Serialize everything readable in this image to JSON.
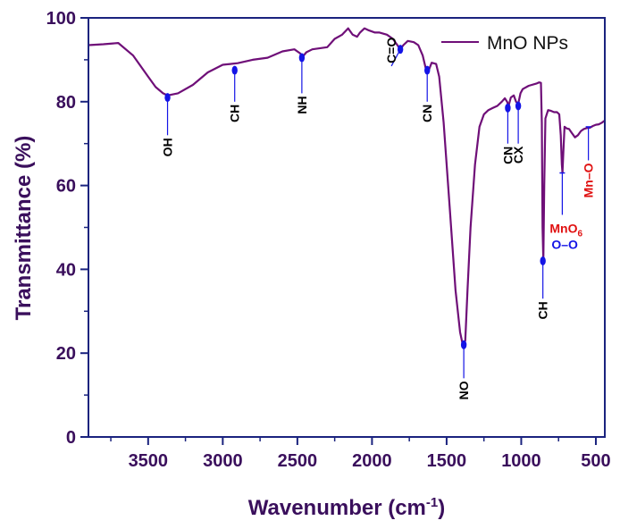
{
  "chart_data": {
    "type": "line",
    "title": "",
    "xlabel": "Wavenumber (cm",
    "xlabel_sup": "-1",
    "xlabel_end": ")",
    "ylabel": "Transmittance (%)",
    "xlim": [
      3900,
      440
    ],
    "ylim": [
      0,
      100
    ],
    "xticks": [
      3500,
      3000,
      2500,
      2000,
      1500,
      1000,
      500
    ],
    "yticks": [
      0,
      20,
      40,
      60,
      80,
      100
    ],
    "legend": {
      "position": "top-right",
      "label": "MnO NPs"
    },
    "colors": {
      "line": "#6f0f78",
      "axis": "#1a237e",
      "text": "#3a0f5c",
      "marker": "#1414e6",
      "red": "#e01010",
      "blue": "#1414e6"
    },
    "series": [
      {
        "name": "MnO NPs",
        "x": [
          3900,
          3800,
          3700,
          3600,
          3500,
          3450,
          3400,
          3370,
          3300,
          3200,
          3100,
          3000,
          2950,
          2900,
          2800,
          2700,
          2600,
          2520,
          2480,
          2470,
          2440,
          2400,
          2300,
          2250,
          2200,
          2160,
          2130,
          2100,
          2080,
          2050,
          2020,
          1980,
          1950,
          1900,
          1860,
          1830,
          1810,
          1790,
          1760,
          1720,
          1690,
          1660,
          1640,
          1620,
          1600,
          1570,
          1550,
          1520,
          1480,
          1440,
          1410,
          1395,
          1385,
          1375,
          1360,
          1340,
          1310,
          1280,
          1250,
          1220,
          1190,
          1160,
          1130,
          1110,
          1095,
          1085,
          1070,
          1050,
          1035,
          1020,
          1005,
          990,
          950,
          900,
          880,
          868,
          862,
          857,
          852,
          846,
          838,
          820,
          800,
          780,
          760,
          745,
          735,
          728,
          724,
          718,
          710,
          695,
          680,
          660,
          640,
          620,
          600,
          580,
          560,
          540,
          520,
          500,
          480,
          460,
          440
        ],
        "y": [
          93.5,
          93.7,
          94,
          91,
          86,
          83.5,
          82,
          81.5,
          82,
          84,
          87,
          88.8,
          89,
          89.2,
          90,
          90.5,
          92,
          92.5,
          91.5,
          90.5,
          91.8,
          92.5,
          93,
          95,
          96,
          97.5,
          96,
          95.5,
          96.5,
          97.5,
          97,
          96.5,
          96.5,
          96,
          95,
          93.5,
          92.5,
          93.5,
          94.5,
          94.2,
          93.5,
          91,
          88,
          87.5,
          89.3,
          89,
          86,
          75,
          55,
          35,
          25,
          22.5,
          22,
          23,
          35,
          50,
          65,
          74,
          77,
          78,
          78.5,
          79,
          80,
          80.8,
          80,
          79,
          81,
          81.5,
          80,
          79.5,
          82,
          83,
          83.8,
          84.3,
          84.6,
          84.5,
          75,
          50,
          42,
          60,
          76,
          78,
          77.8,
          77.5,
          77.5,
          77,
          72,
          65,
          63,
          68,
          74,
          73.6,
          73.5,
          72.5,
          71.5,
          72,
          73,
          73.5,
          73.7,
          73.8,
          74.2,
          74.5,
          74.6,
          75,
          75.5
        ]
      }
    ],
    "annotations": [
      {
        "label": "OH",
        "x": 3370,
        "dot": 81,
        "end": 72,
        "color": "#000000"
      },
      {
        "label": "CH",
        "x": 2920,
        "dot": 87.5,
        "end": 80,
        "color": "#000000"
      },
      {
        "label": "NH",
        "x": 2470,
        "dot": 90.5,
        "end": 82,
        "color": "#000000"
      },
      {
        "label": "C=O",
        "x": 1810,
        "dot": 92.5,
        "end": 88.5,
        "endx": 1870,
        "above": true,
        "color": "#000000"
      },
      {
        "label": "CN",
        "x": 1630,
        "dot": 87.5,
        "end": 80,
        "color": "#000000"
      },
      {
        "label": "NO",
        "x": 1385,
        "dot": 22,
        "end": 14,
        "color": "#000000"
      },
      {
        "label": "CN",
        "x": 1090,
        "dot": 78.5,
        "end": 70,
        "color": "#000000"
      },
      {
        "label": "CX",
        "x": 1020,
        "dot": 79,
        "end": 70,
        "color": "#000000"
      },
      {
        "label": "CH",
        "x": 855,
        "dot": 42,
        "end": 33,
        "color": "#000000"
      },
      {
        "label": "Mn–O",
        "x": 550,
        "dot": 74,
        "end": 66,
        "color": "#e01010",
        "tick": true
      }
    ],
    "mno6_annotation": {
      "x": 725,
      "dot": 63,
      "end": 53,
      "label_main": "MnO",
      "label_sub": "6",
      "label_2": "O–O"
    }
  }
}
